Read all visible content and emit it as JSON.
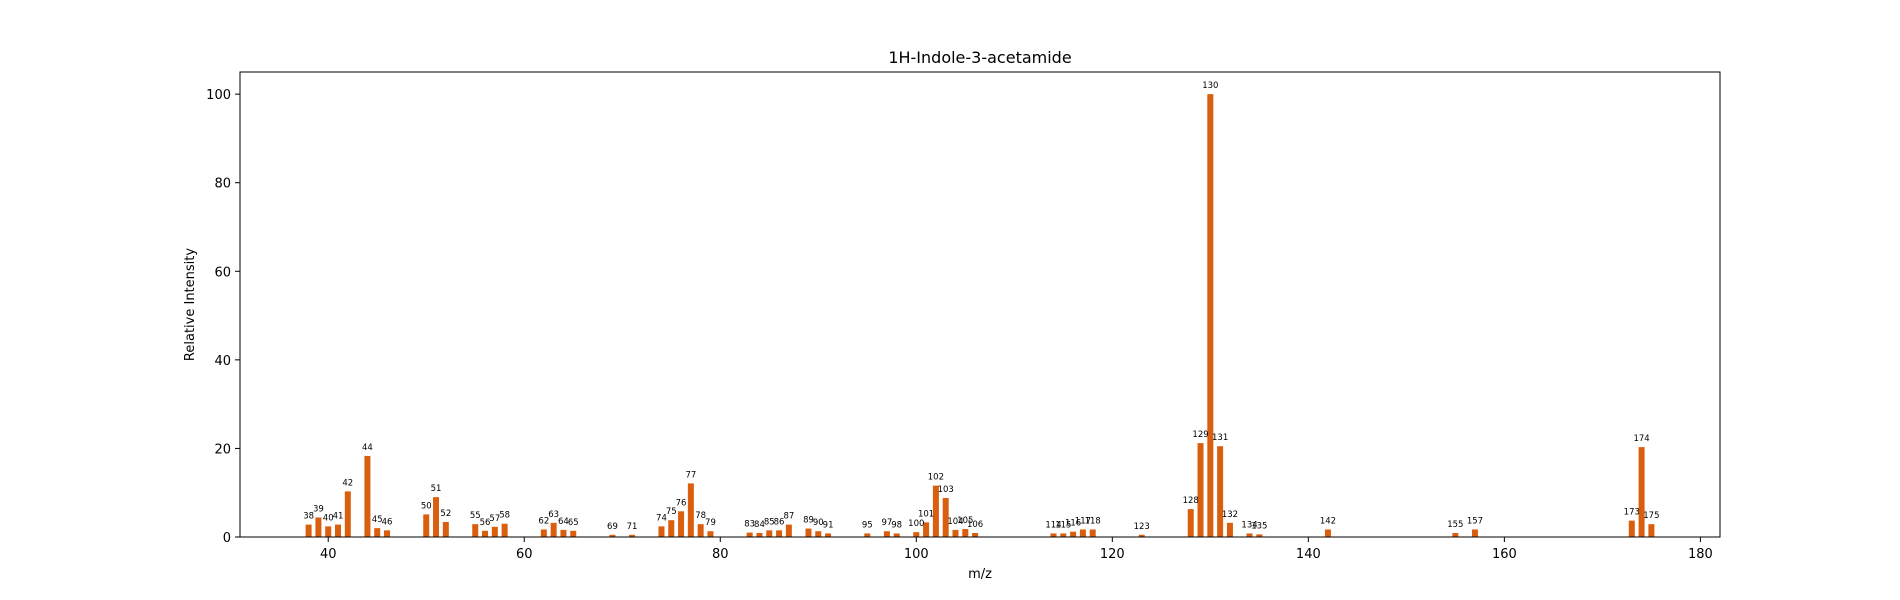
{
  "chart_data": {
    "type": "bar",
    "title": "1H-Indole-3-acetamide",
    "xlabel": "m/z",
    "ylabel": "Relative Intensity",
    "xlim": [
      31,
      182
    ],
    "ylim": [
      0,
      105
    ],
    "xticks": [
      40,
      60,
      80,
      100,
      120,
      140,
      160,
      180
    ],
    "yticks": [
      0,
      20,
      40,
      60,
      80,
      100
    ],
    "grid": false,
    "bar_color": "#d95f0e",
    "series": [
      {
        "x": [
          38,
          39,
          40,
          41,
          42,
          44,
          45,
          46,
          50,
          51,
          52,
          55,
          56,
          57,
          58,
          62,
          63,
          64,
          65,
          69,
          71,
          74,
          75,
          76,
          77,
          78,
          79,
          83,
          84,
          85,
          86,
          87,
          89,
          90,
          91,
          95,
          97,
          98,
          100,
          101,
          102,
          103,
          104,
          105,
          106,
          114,
          115,
          116,
          117,
          118,
          123,
          128,
          129,
          130,
          131,
          132,
          134,
          135,
          142,
          155,
          157,
          173,
          174,
          175
        ],
        "values": [
          2.8,
          4.4,
          2.4,
          2.8,
          10.3,
          18.3,
          2.0,
          1.5,
          5.1,
          9.0,
          3.4,
          2.9,
          1.4,
          2.3,
          3.0,
          1.7,
          3.2,
          1.6,
          1.4,
          0.5,
          0.5,
          2.4,
          3.8,
          5.8,
          12.1,
          2.9,
          1.3,
          1.0,
          0.9,
          1.5,
          1.5,
          2.8,
          1.9,
          1.3,
          0.8,
          0.8,
          1.3,
          0.8,
          1.1,
          3.3,
          11.6,
          8.8,
          1.6,
          1.8,
          0.9,
          0.8,
          0.8,
          1.2,
          1.7,
          1.7,
          0.5,
          6.3,
          21.2,
          100.0,
          20.5,
          3.2,
          0.8,
          0.6,
          1.7,
          0.9,
          1.7,
          3.7,
          20.3,
          2.9
        ],
        "labels": [
          "38",
          "39",
          "40",
          "41",
          "42",
          "44",
          "45",
          "46",
          "50",
          "51",
          "52",
          "55",
          "56",
          "57",
          "58",
          "62",
          "63",
          "64",
          "65",
          "69",
          "71",
          "74",
          "75",
          "76",
          "77",
          "78",
          "79",
          "83",
          "84",
          "85",
          "86",
          "87",
          "89",
          "90",
          "91",
          "95",
          "97",
          "98",
          "100",
          "101",
          "102",
          "103",
          "104",
          "105",
          "106",
          "114",
          "115",
          "116",
          "117",
          "118",
          "123",
          "128",
          "129",
          "130",
          "131",
          "132",
          "134",
          "135",
          "142",
          "155",
          "157",
          "173",
          "174",
          "175"
        ]
      }
    ]
  }
}
